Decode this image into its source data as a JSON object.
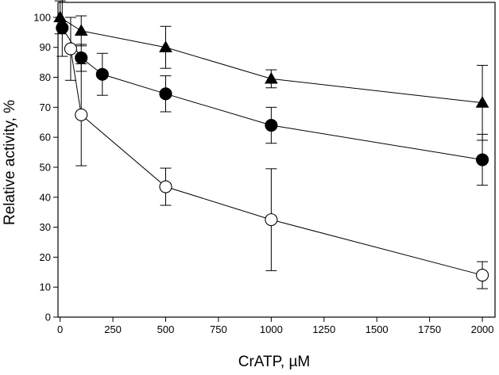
{
  "chart_data": {
    "type": "line",
    "title": "",
    "xlabel": "CrATP, µM",
    "ylabel": "Relative activity, %",
    "xlim": [
      -10,
      2060
    ],
    "ylim": [
      0,
      105
    ],
    "x_ticks": [
      0,
      250,
      500,
      750,
      1000,
      1250,
      1500,
      1750,
      2000
    ],
    "y_ticks": [
      0,
      10,
      20,
      30,
      40,
      50,
      60,
      70,
      80,
      90,
      100
    ],
    "grid": false,
    "legend": "none",
    "series": [
      {
        "name": "filled-triangle",
        "marker": "triangle",
        "fill": "#000000",
        "points": [
          {
            "x": 0,
            "y": 100,
            "err": 5.5
          },
          {
            "x": 100,
            "y": 95.5,
            "err": 5
          },
          {
            "x": 500,
            "y": 90,
            "err": 7
          },
          {
            "x": 1000,
            "y": 79.5,
            "err": 3
          },
          {
            "x": 2000,
            "y": 71.5,
            "err": 12.5
          }
        ]
      },
      {
        "name": "filled-circle",
        "marker": "circle",
        "fill": "#000000",
        "points": [
          {
            "x": 10,
            "y": 96.5,
            "err": 9.5
          },
          {
            "x": 100,
            "y": 86.5,
            "err": 4.5
          },
          {
            "x": 200,
            "y": 81,
            "err": 7
          },
          {
            "x": 500,
            "y": 74.5,
            "err": 6
          },
          {
            "x": 1000,
            "y": 64,
            "err": 6
          },
          {
            "x": 2000,
            "y": 52.5,
            "err": 8.5
          }
        ]
      },
      {
        "name": "open-circle",
        "marker": "circle",
        "fill": "#ffffff",
        "points": [
          {
            "x": 50,
            "y": 89.5,
            "err": 10.5
          },
          {
            "x": 100,
            "y": 67.5,
            "err": 17
          },
          {
            "x": 500,
            "y": 43.5,
            "err": 6.2
          },
          {
            "x": 1000,
            "y": 32.5,
            "err": 17
          },
          {
            "x": 2000,
            "y": 14,
            "err": 4.5
          }
        ]
      }
    ]
  }
}
